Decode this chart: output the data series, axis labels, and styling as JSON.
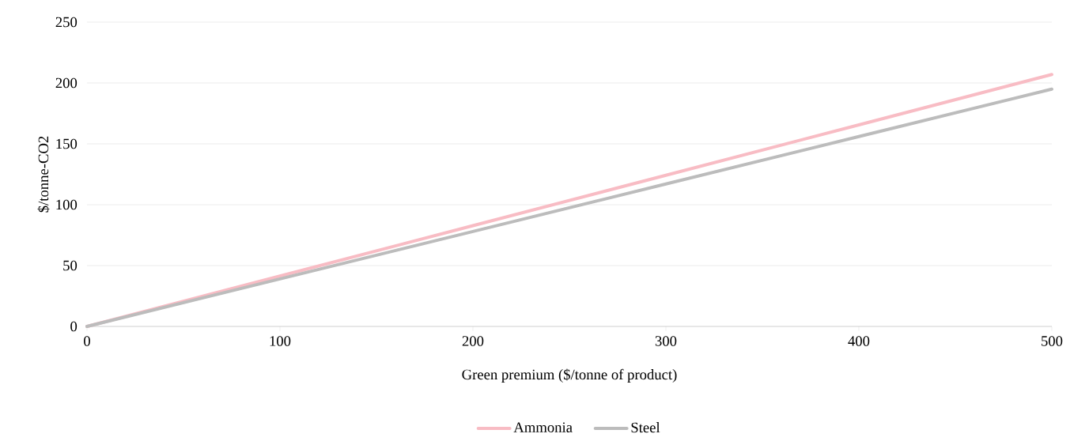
{
  "chart_data": {
    "type": "line",
    "xlabel": "Green premium ($/tonne of product)",
    "ylabel": "$/tonne-CO2",
    "x": [
      0,
      100,
      200,
      300,
      400,
      500
    ],
    "series": [
      {
        "name": "Ammonia",
        "color": "#f8bcc4",
        "values": [
          0,
          41.4,
          82.8,
          124.2,
          165.6,
          207
        ]
      },
      {
        "name": "Steel",
        "color": "#bcbcbc",
        "values": [
          0,
          39,
          78,
          117,
          156,
          195
        ]
      }
    ],
    "xlim": [
      0,
      500
    ],
    "ylim": [
      0,
      250
    ],
    "xticks": [
      0,
      100,
      200,
      300,
      400,
      500
    ],
    "yticks": [
      0,
      50,
      100,
      150,
      200,
      250
    ],
    "grid": "y",
    "legend": "bottom",
    "marker": "none",
    "line_style": "solid"
  }
}
